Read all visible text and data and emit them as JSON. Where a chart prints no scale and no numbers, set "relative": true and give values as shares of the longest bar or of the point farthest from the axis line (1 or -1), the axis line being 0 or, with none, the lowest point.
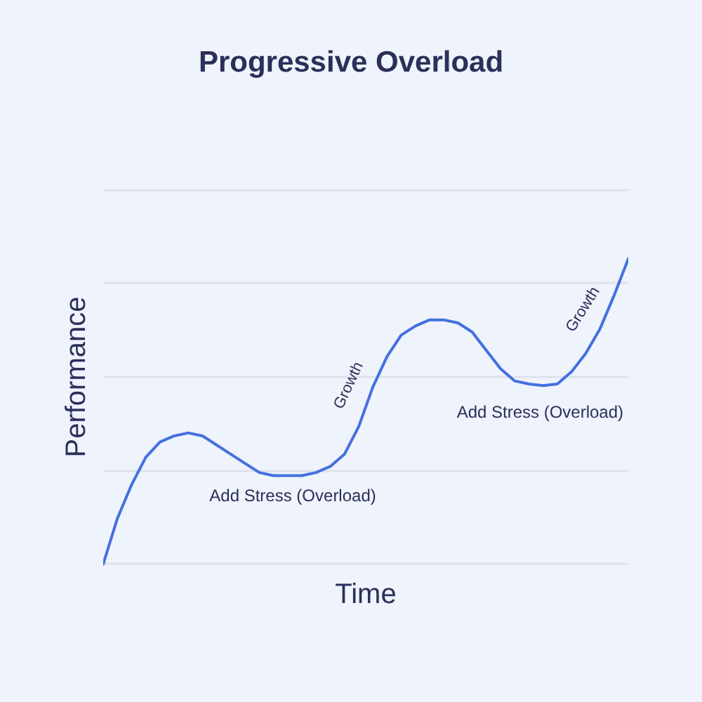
{
  "chart_data": {
    "type": "line",
    "title": "Progressive Overload",
    "xlabel": "Time",
    "ylabel": "Performance",
    "relative": true,
    "grid": "y",
    "categories": [
      null,
      null,
      null,
      null,
      null,
      null,
      null,
      null,
      null,
      null,
      null,
      null,
      null,
      null,
      null,
      null,
      null,
      null,
      null,
      null,
      null,
      null,
      null,
      null,
      null,
      null,
      null,
      null,
      null,
      null,
      null,
      null,
      null,
      null,
      null,
      null,
      null,
      null
    ],
    "series": [
      {
        "color": "#4470e0",
        "values": [
          0,
          0.15,
          0.26,
          0.35,
          0.4,
          0.42,
          0.43,
          0.42,
          0.39,
          0.36,
          0.33,
          0.3,
          0.29,
          0.29,
          0.29,
          0.3,
          0.32,
          0.36,
          0.45,
          0.58,
          0.68,
          0.75,
          0.78,
          0.8,
          0.8,
          0.79,
          0.76,
          0.7,
          0.64,
          0.6,
          0.59,
          0.585,
          0.59,
          0.63,
          0.69,
          0.77,
          0.88,
          1
        ]
      }
    ],
    "annotations": [
      "Add Stress (Overload)",
      "Growth",
      "Add Stress (Overload)",
      "Growth"
    ]
  }
}
